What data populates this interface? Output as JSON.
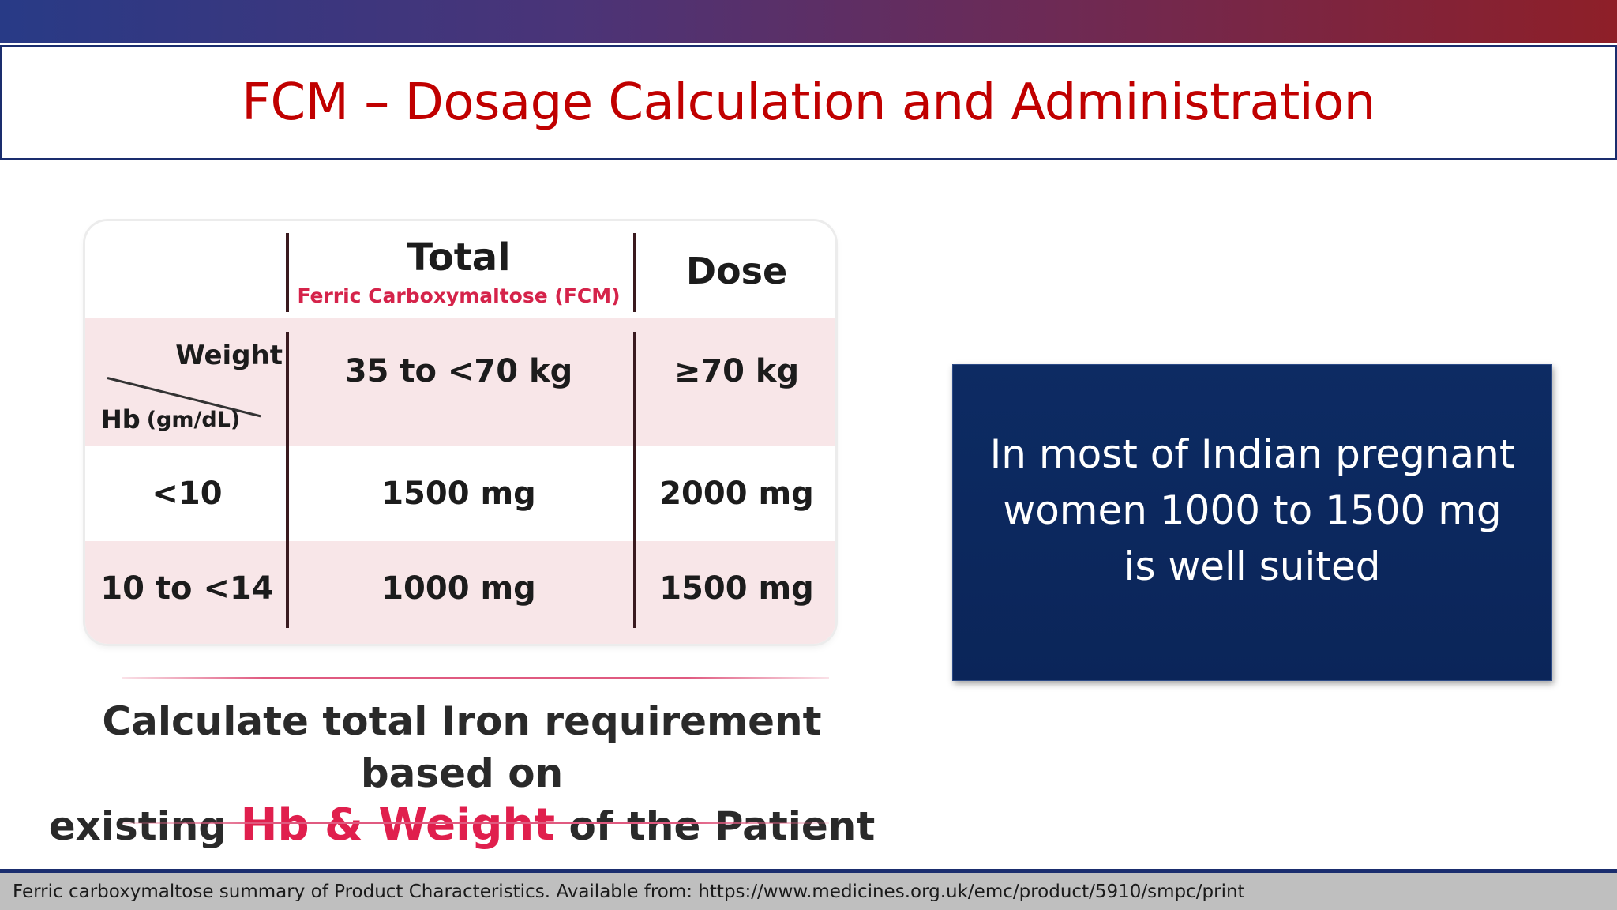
{
  "slide": {
    "title": "FCM – Dosage Calculation and Administration"
  },
  "table": {
    "header_total": "Total",
    "header_sub": "Ferric Carboxymaltose (FCM)",
    "header_dose": "Dose",
    "weight_label": "Weight",
    "hb_label": "Hb",
    "hb_unit": "(gm/dL)",
    "weight_col1": "35 to <70 kg",
    "weight_col2": "≥70 kg",
    "rows": [
      {
        "hb": "<10",
        "dose1": "1500 mg",
        "dose2": "2000 mg"
      },
      {
        "hb": "10 to <14",
        "dose1": "1000 mg",
        "dose2": "1500 mg"
      }
    ]
  },
  "calc": {
    "line1": "Calculate total Iron requirement based on",
    "line2_pre": "existing",
    "line2_highlight": "Hb & Weight",
    "line2_post": "of the Patient"
  },
  "note": {
    "text": "In most of Indian pregnant women 1000 to 1500 mg is well suited"
  },
  "footer": {
    "reference": "Ferric carboxymaltose summary of Product Characteristics. Available from: https://www.medicines.org.uk/emc/product/5910/smpc/print"
  },
  "colors": {
    "title": "#c00000",
    "navy": "#0d2b63",
    "highlight": "#e01f4d",
    "pink_row": "#f8e6e8"
  }
}
